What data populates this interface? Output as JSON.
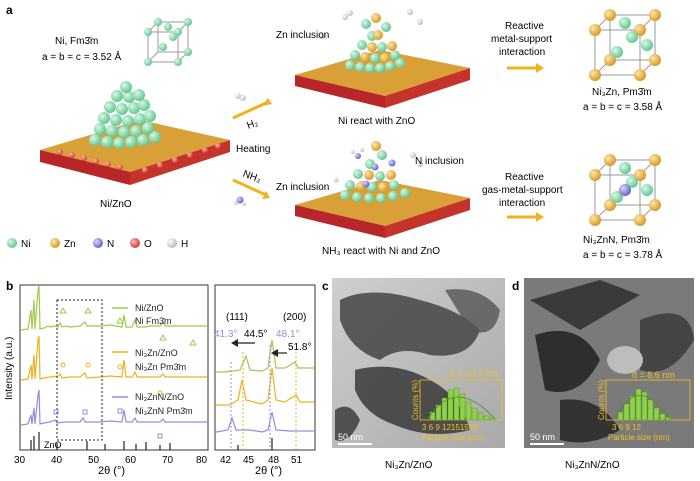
{
  "panels": {
    "a": "a",
    "b": "b",
    "c": "c",
    "d": "d"
  },
  "top": {
    "ni_phase": "Ni, Fm3̄m",
    "ni_lattice": "a = b = c = 3.52 Å",
    "ni_zno": "Ni/ZnO",
    "h2": "H₂",
    "heating": "Heating",
    "nh3": "NH₃",
    "zn_inclusion_1": "Zn inclusion",
    "ni_react_zno": "Ni react with ZnO",
    "zn_inclusion_2": "Zn inclusion",
    "n_inclusion": "N inclusion",
    "nh3_react": "NH₃ react with Ni and ZnO",
    "reactive_1_l1": "Reactive",
    "reactive_1_l2": "metal-support",
    "reactive_1_l3": "interaction",
    "reactive_2_l1": "Reactive",
    "reactive_2_l2": "gas-metal-support",
    "reactive_2_l3": "interaction",
    "ni3zn_phase": "Ni₃Zn, Pm3̄m",
    "ni3zn_lattice": "a = b = c = 3.58 Å",
    "ni3znn_phase": "Ni₃ZnN, Pm3̄m",
    "ni3znn_lattice": "a = b = c = 3.78 Å"
  },
  "legend_atoms": [
    {
      "label": "Ni",
      "color": "#7fd9a8"
    },
    {
      "label": "Zn",
      "color": "#e8b24a"
    },
    {
      "label": "N",
      "color": "#7b7fd8"
    },
    {
      "label": "O",
      "color": "#e05a4e"
    },
    {
      "label": "H",
      "color": "#dddddd"
    }
  ],
  "xrd": {
    "ylabel": "Intensity (a.u.)",
    "xlabel": "2θ (°)",
    "xticks_main": [
      "30",
      "40",
      "50",
      "60",
      "70",
      "80"
    ],
    "xticks_zoom": [
      "42",
      "45",
      "48",
      "51"
    ],
    "series": [
      {
        "name": "Ni/ZnO",
        "color": "#9ccc4a"
      },
      {
        "name": "Ni Fm3̄m",
        "color": "#9ccc4a"
      },
      {
        "name": "Ni₃Zn/ZnO",
        "color": "#f0b020"
      },
      {
        "name": "Ni₃Zn Pm3̄m",
        "color": "#f0b020"
      },
      {
        "name": "Ni₃ZnN/ZnO",
        "color": "#8f8fe0"
      },
      {
        "name": "Ni₃ZnN Pm3̄m",
        "color": "#8f8fe0"
      }
    ],
    "zno_label": "ZnO",
    "peak_111": "(111)",
    "peak_200": "(200)",
    "p413": "41.3°",
    "p445": "44.5°",
    "p481": "48.1°",
    "p518": "51.8°"
  },
  "tem_c": {
    "scale": "50 nm",
    "d_label": "d̄ = 10.1 nm",
    "counts": "Counts (%)",
    "psize": "Particle size (nm)",
    "ticks": "3 6 9 12151518",
    "caption": "Ni₃Zn/ZnO"
  },
  "tem_d": {
    "scale": "50 nm",
    "d_label": "d̄ = 8.6 nm",
    "counts": "Counts (%)",
    "psize": "Particle size (nm)",
    "ticks": "3 6 9 12",
    "caption": "Ni₃ZnN/ZnO"
  }
}
